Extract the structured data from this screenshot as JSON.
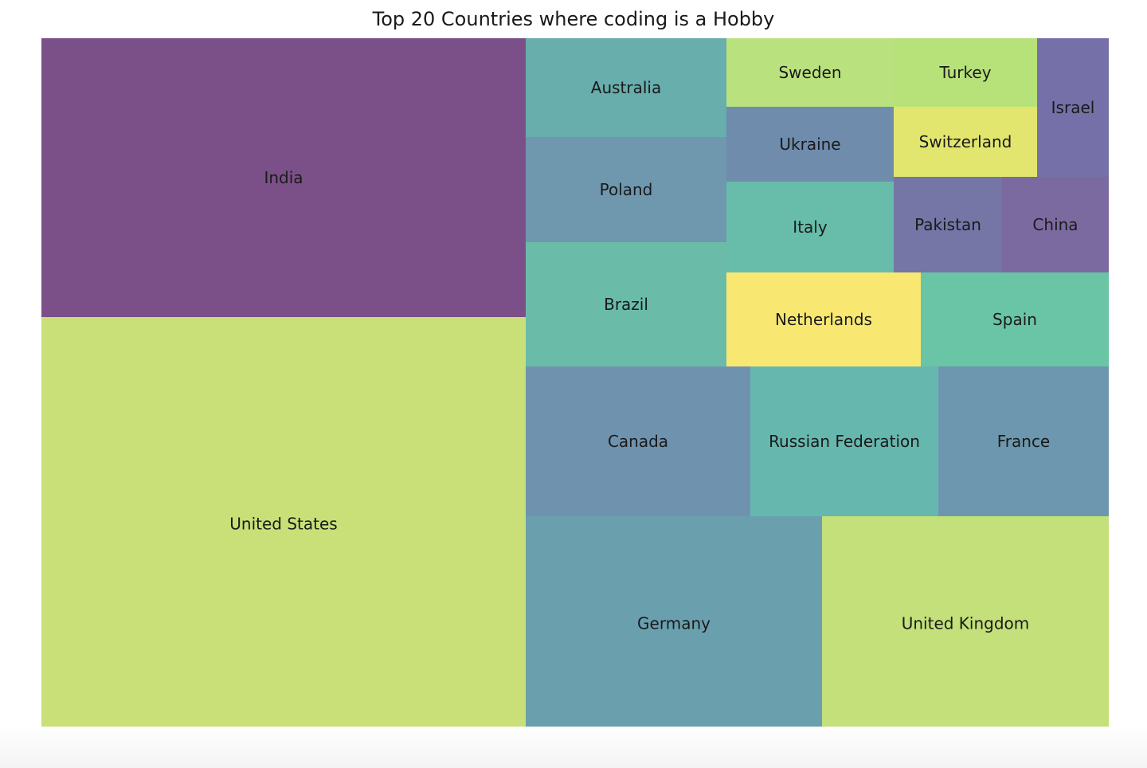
{
  "chart_data": {
    "type": "treemap",
    "title": "Top 20 Countries where coding is a Hobby",
    "labels": [
      "United States",
      "India",
      "Germany",
      "United Kingdom",
      "Canada",
      "Russian Federation",
      "France",
      "Brazil",
      "Poland",
      "Australia",
      "Netherlands",
      "Spain",
      "Italy",
      "Ukraine",
      "Sweden",
      "Switzerland",
      "Pakistan",
      "Turkey",
      "China",
      "Israel"
    ],
    "values": [
      16700,
      7020,
      6720,
      4890,
      3500,
      2900,
      2560,
      2600,
      2200,
      2060,
      1900,
      1830,
      1590,
      1290,
      1210,
      1030,
      950,
      1020,
      910,
      850
    ],
    "colors": [
      "#c8e077",
      "#7b5088",
      "#6a9fae",
      "#c3e07a",
      "#6f93ae",
      "#66b8ae",
      "#6d97ae",
      "#6abca9",
      "#6f97ae",
      "#67aeac",
      "#f8e872",
      "#6ac4a6",
      "#68bcaa",
      "#6f8cad",
      "#b9e27e",
      "#e2e66e",
      "#7575a6",
      "#b7e27a",
      "#7b6aa0",
      "#7670a8"
    ]
  }
}
